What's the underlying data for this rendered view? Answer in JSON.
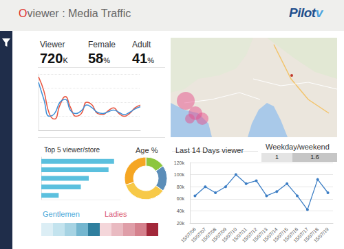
{
  "header": {
    "title": "Oviewer : Media Traffic",
    "logo": "Pilotv"
  },
  "kpis": [
    {
      "label": "Viewer",
      "value": 720,
      "unit": "K"
    },
    {
      "label": "Female",
      "value": 58,
      "unit": "%"
    },
    {
      "label": "Adult",
      "value": 41,
      "unit": "%"
    }
  ],
  "chart_data": [
    {
      "type": "line",
      "categories": [
        null,
        null,
        null,
        null,
        null,
        null,
        null,
        null,
        null,
        null,
        null,
        null,
        null,
        null,
        null,
        null,
        null,
        null,
        null,
        null
      ],
      "series": [
        {
          "color": "#e8553f",
          "values": [
            95,
            70,
            30,
            20,
            45,
            60,
            40,
            25,
            30,
            50,
            45,
            30,
            28,
            35,
            40,
            30,
            25,
            30,
            40,
            45
          ]
        },
        {
          "color": "#3e8fd6",
          "values": [
            85,
            55,
            25,
            30,
            50,
            55,
            35,
            30,
            35,
            45,
            40,
            32,
            30,
            33,
            36,
            32,
            28,
            32,
            38,
            42
          ]
        }
      ],
      "ylim": [
        0,
        100
      ],
      "yticks": [
        0,
        25,
        50,
        75,
        100
      ],
      "grid": true,
      "tick_labels": false
    },
    {
      "type": "bar",
      "title": "Top 5 viewer/store",
      "orientation": "horizontal",
      "categories": [
        null,
        null,
        null,
        null,
        null
      ],
      "values": [
        92,
        85,
        60,
        50,
        22
      ],
      "color": "#5bc0de",
      "xlim": [
        0,
        100
      ],
      "xticks": [
        0,
        100
      ],
      "grid": false,
      "tick_labels": false
    },
    {
      "type": "pie",
      "title": "Age %",
      "values": [
        15,
        20,
        35,
        30
      ],
      "colors": [
        "#8dc63f",
        "#5b8db8",
        "#f7c948",
        "#f5a623"
      ]
    },
    {
      "type": "line",
      "title": "Last 14 Days viewer",
      "categories": [
        "15/07/06",
        "15/07/07",
        "15/07/08",
        "15/07/09",
        "15/07/10",
        "15/07/11",
        "15/07/12",
        "15/07/13",
        "15/07/14",
        "15/07/15",
        "15/07/16",
        "15/07/17",
        "15/07/18",
        "15/07/19"
      ],
      "values": [
        65000,
        80000,
        70000,
        80000,
        100000,
        85000,
        90000,
        65000,
        72000,
        85000,
        65000,
        42000,
        92000,
        70000
      ],
      "color": "#3b7dc4",
      "marker": "circle",
      "ylim": [
        20000,
        120000
      ],
      "yticks": [
        {
          "value": 20000,
          "label": "20k"
        },
        {
          "value": 40000,
          "label": "40k"
        },
        {
          "value": 60000,
          "label": "60k"
        },
        {
          "value": 80000,
          "label": "80k"
        },
        {
          "value": 100000,
          "label": "100k"
        },
        {
          "value": 120000,
          "label": "120k"
        }
      ],
      "grid": true
    }
  ],
  "weekday_weekend": {
    "title": "Weekday/weekend",
    "values": [
      1,
      1.6
    ]
  },
  "gender_legend": {
    "labels": [
      "Gentlemen",
      "Ladies"
    ]
  }
}
